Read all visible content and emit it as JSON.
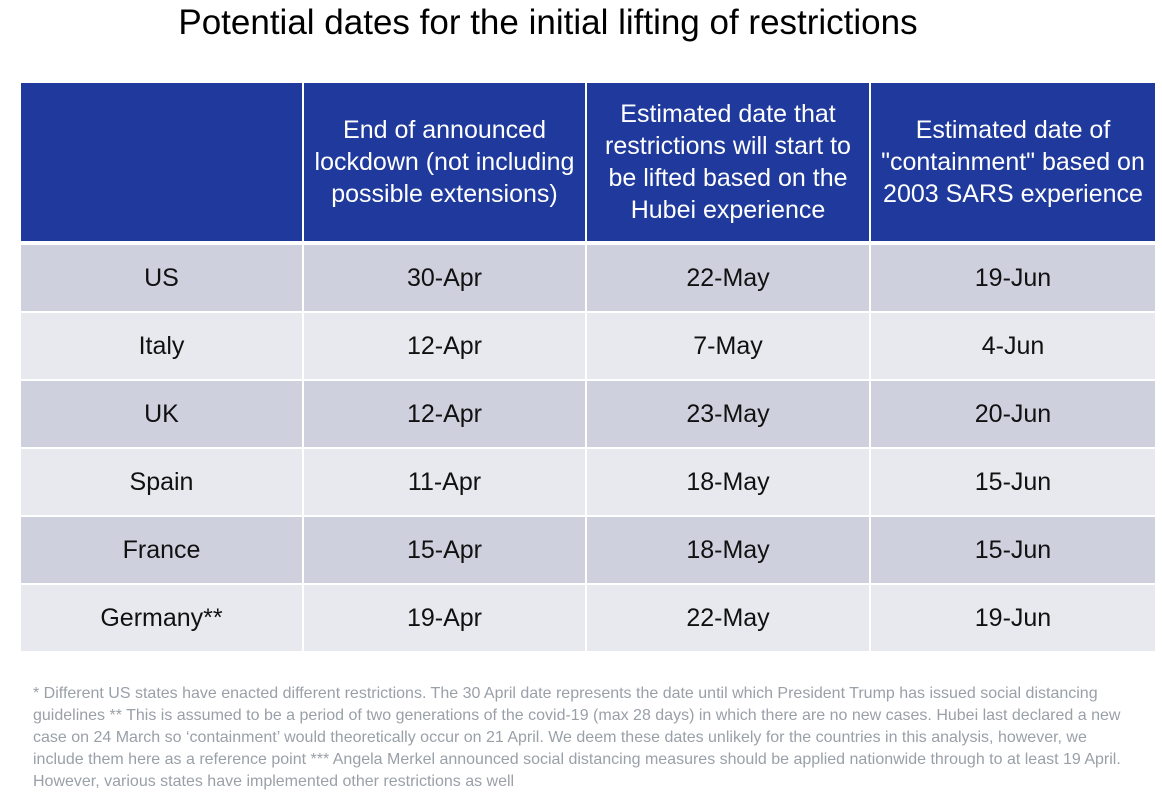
{
  "title": "Potential dates for the initial lifting of restrictions",
  "table": {
    "headers": [
      "",
      "End of announced lockdown (not including possible extensions)",
      "Estimated date that restrictions will start to be lifted based on the Hubei experience",
      "Estimated date of \"containment\" based on 2003 SARS experience"
    ],
    "rows": [
      {
        "country": "US",
        "lockdown_end": "30-Apr",
        "hubei_lift": "22-May",
        "sars_containment": "19-Jun"
      },
      {
        "country": "Italy",
        "lockdown_end": "12-Apr",
        "hubei_lift": "7-May",
        "sars_containment": "4-Jun"
      },
      {
        "country": "UK",
        "lockdown_end": "12-Apr",
        "hubei_lift": "23-May",
        "sars_containment": "20-Jun"
      },
      {
        "country": "Spain",
        "lockdown_end": "11-Apr",
        "hubei_lift": "18-May",
        "sars_containment": "15-Jun"
      },
      {
        "country": "France",
        "lockdown_end": "15-Apr",
        "hubei_lift": "18-May",
        "sars_containment": "15-Jun"
      },
      {
        "country": "Germany**",
        "lockdown_end": "19-Apr",
        "hubei_lift": "22-May",
        "sars_containment": "19-Jun"
      }
    ]
  },
  "footnote": "* Different US states have enacted different restrictions. The 30 April date represents the date until which President Trump has issued social distancing guidelines ** This is assumed to be a period of two generations of the covid-19 (max 28 days) in which there are no new cases. Hubei last declared a new case on 24 March so ‘containment’ would theoretically occur on 21 April. We deem these dates unlikely for the countries in this analysis, however, we include them here as a reference point *** Angela Merkel announced social distancing measures should be applied nationwide through to at least 19 April. However, various states have implemented other restrictions as well",
  "colors": {
    "header_background": "#1f3a9c",
    "row_dark": "#cfd0de",
    "row_light": "#e8e9ef",
    "footnote_text": "#9aa0a8"
  }
}
